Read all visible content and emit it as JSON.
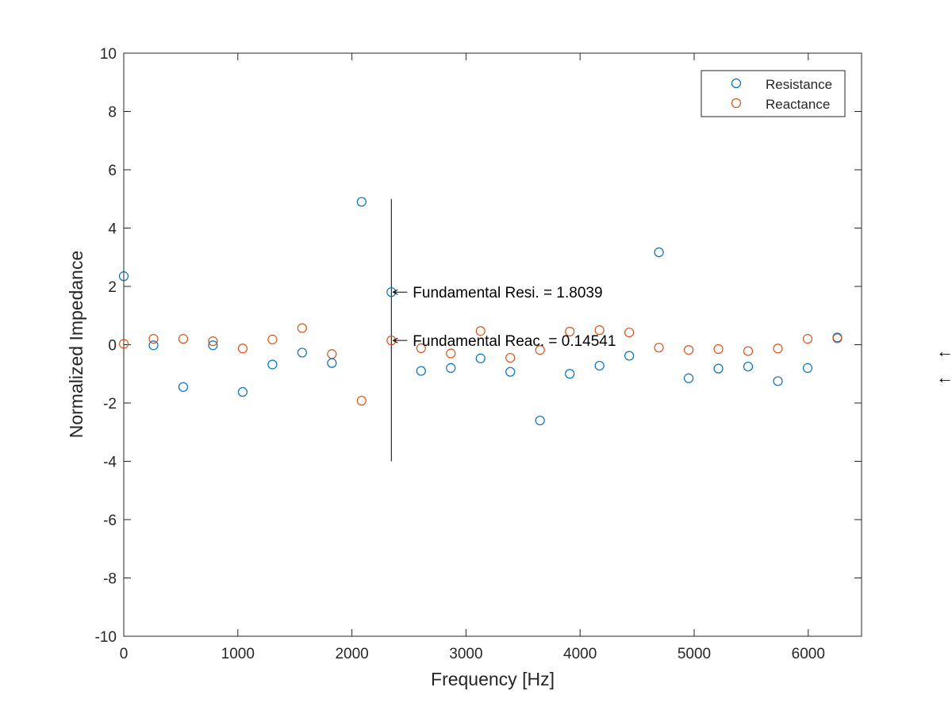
{
  "chart_data": {
    "type": "scatter",
    "xlabel": "Frequency [Hz]",
    "ylabel": "Normalized Impedance",
    "xlim": [
      0,
      6400
    ],
    "ylim": [
      -10,
      10
    ],
    "xticks": [
      0,
      1000,
      2000,
      3000,
      4000,
      5000,
      6000
    ],
    "yticks": [
      -10,
      -8,
      -6,
      -4,
      -2,
      0,
      2,
      4,
      6,
      8,
      10
    ],
    "grid": false,
    "legend_position": "top-right",
    "series": [
      {
        "name": "Resistance",
        "color": "#0072BD",
        "marker": "circle-open",
        "x": [
          0,
          260.6,
          521.3,
          781.9,
          1042.5,
          1303.1,
          1563.8,
          1824.4,
          2085,
          2345.6,
          2606.3,
          2866.9,
          3127.5,
          3388.1,
          3648.8,
          3909.4,
          4170,
          4430.6,
          4691.3,
          4951.9,
          5212.5,
          5473.1,
          5733.8,
          5994.4,
          6255
        ],
        "y": [
          2.35,
          -0.02,
          -1.45,
          -0.02,
          -1.62,
          -0.68,
          -0.27,
          -0.63,
          4.9,
          1.8039,
          -0.9,
          -0.8,
          -0.47,
          -0.93,
          -2.6,
          -1.0,
          -0.72,
          -0.38,
          3.17,
          -1.15,
          -0.82,
          -0.75,
          -1.25,
          -0.8,
          0.25
        ]
      },
      {
        "name": "Reactance",
        "color": "#D95319",
        "marker": "circle-open",
        "x": [
          0,
          260.6,
          521.3,
          781.9,
          1042.5,
          1303.1,
          1563.8,
          1824.4,
          2085,
          2345.6,
          2606.3,
          2866.9,
          3127.5,
          3388.1,
          3648.8,
          3909.4,
          4170,
          4430.6,
          4691.3,
          4951.9,
          5212.5,
          5473.1,
          5733.8,
          5994.4,
          6255
        ],
        "y": [
          0.03,
          0.2,
          0.2,
          0.12,
          -0.13,
          0.18,
          0.57,
          -0.32,
          -1.92,
          0.14541,
          -0.12,
          -0.3,
          0.47,
          -0.45,
          -0.18,
          0.45,
          0.5,
          0.42,
          -0.1,
          -0.18,
          -0.15,
          -0.22,
          -0.13,
          0.2,
          0.22
        ]
      }
    ],
    "marker_line": {
      "x": 2345.6,
      "y_range": [
        -4,
        5
      ]
    },
    "annotations": [
      {
        "text": "Fundamental Resi. = 1.8039",
        "x": 2345.6,
        "y": 1.8039
      },
      {
        "text": "Fundamental Reac. = 0.14541",
        "x": 2345.6,
        "y": 0.14541
      }
    ],
    "edge_arrows": [
      "←",
      "←"
    ],
    "colors": {
      "axis": "#262626",
      "background": "#ffffff"
    }
  }
}
